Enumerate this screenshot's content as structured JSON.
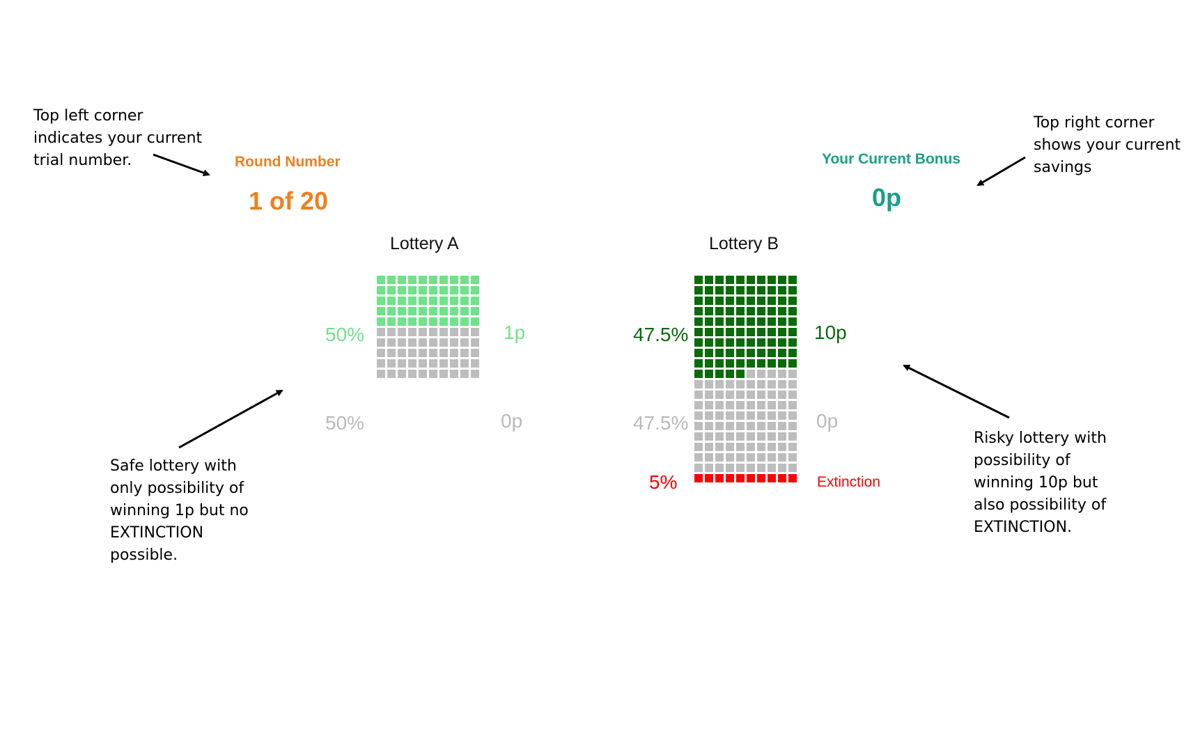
{
  "annotations": {
    "top_left": [
      "Top left corner",
      "indicates your current",
      "trial number."
    ],
    "top_right": [
      "Top right corner",
      "shows your current",
      "savings"
    ],
    "safe": [
      "Safe lottery with",
      "only possibility of",
      "winning 1p but no",
      "EXTINCTION",
      "possible."
    ],
    "risky": [
      "Risky lottery with",
      "possibility of",
      "winning 10p but",
      "also possibility of",
      "EXTINCTION."
    ]
  },
  "round": {
    "label": "Round Number",
    "value": "1 of 20",
    "color": "#f07f1e"
  },
  "bonus": {
    "label": "Your Current Bonus",
    "value": "0p",
    "color": "#17a085"
  },
  "lotteries": [
    {
      "title": "Lottery A",
      "rows": [
        {
          "pct": "50%",
          "outcome": "1p",
          "cells": 50,
          "color": "#6fe28a"
        },
        {
          "pct": "50%",
          "outcome": "0p",
          "cells": 50,
          "color": "#bdbdbd"
        }
      ]
    },
    {
      "title": "Lottery B",
      "rows": [
        {
          "pct": "47.5%",
          "outcome": "10p",
          "cells": 95,
          "color": "#0b6b0b"
        },
        {
          "pct": "47.5%",
          "outcome": "0p",
          "cells": 95,
          "color": "#bdbdbd"
        },
        {
          "pct": "5%",
          "outcome": "Extinction",
          "cells": 10,
          "color": "#ff0000"
        }
      ]
    }
  ],
  "colors": {
    "label_gray": "#b9b9b9",
    "extinction": "#ff0000",
    "lottery_a_win": "#6fe28a",
    "lottery_b_win": "#0b6b0b"
  }
}
